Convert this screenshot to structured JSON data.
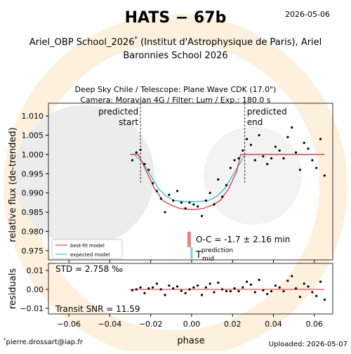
{
  "chart_data": {
    "type": "scatter",
    "title": "HATS − 67b",
    "date": "2026-05-06",
    "subtitle": {
      "line1_a": "Ariel_OBP School_2026",
      "mark": "*",
      "line1_b": " (Institut d'Astrophysique de Paris), Ariel",
      "line2": "Baronnies School 2026"
    },
    "plot_title": [
      "Deep Sky Chile / Telescope: Plane Wave CDK (17.0\")",
      "Camera: Moravian 4G / Filter: Lum / Exp.: 180.0 s"
    ],
    "y_label": "relative flux (de-trended)",
    "residuals_label": "residuals",
    "x_label": "phase",
    "color": "#000000",
    "x": [
      -0.029,
      -0.027,
      -0.025,
      -0.023,
      -0.021,
      -0.019,
      -0.017,
      -0.015,
      -0.013,
      -0.011,
      -0.009,
      -0.007,
      -0.005,
      -0.003,
      -0.001,
      0.001,
      0.003,
      0.005,
      0.007,
      0.009,
      0.011,
      0.013,
      0.015,
      0.017,
      0.019,
      0.021,
      0.023,
      0.025,
      0.027,
      0.029,
      0.031,
      0.033,
      0.035,
      0.037,
      0.039,
      0.041,
      0.043,
      0.045,
      0.047,
      0.049,
      0.051,
      0.053,
      0.055,
      0.057,
      0.059,
      0.061,
      0.063,
      0.065
    ],
    "values": [
      0.9985,
      1.0005,
      1.0012,
      0.9975,
      0.996,
      0.9925,
      0.9905,
      0.9885,
      0.985,
      0.9895,
      0.988,
      0.9905,
      0.9875,
      0.986,
      0.9875,
      0.987,
      0.9865,
      0.984,
      0.988,
      0.99,
      0.987,
      0.9935,
      0.989,
      0.992,
      0.9965,
      0.9985,
      0.999,
      1.001,
      1.004,
      1.0025,
      0.9985,
      1.005,
      0.9995,
      0.9975,
      0.999,
      1.002,
      1.001,
      0.999,
      1.0045,
      1.007,
      1.0005,
      0.996,
      1.003,
      1.0015,
      0.9985,
      0.9965,
      1.004,
      0.9945
    ],
    "residuals": [
      -0.0005,
      0.0,
      0.001,
      -0.002,
      0.0005,
      0.001,
      0.003,
      0.0,
      -0.003,
      0.002,
      0.0005,
      0.0015,
      -0.0008,
      -0.002,
      0.0,
      0.001,
      0.002,
      -0.003,
      0.001,
      0.003,
      -0.0015,
      0.0035,
      0.0,
      -0.001,
      -0.001,
      0.0005,
      -0.001,
      0.001,
      0.004,
      0.0025,
      -0.0015,
      0.005,
      -0.0005,
      -0.0025,
      -0.001,
      0.002,
      0.001,
      -0.001,
      0.0045,
      0.007,
      0.0005,
      -0.004,
      0.003,
      0.0015,
      -0.0015,
      -0.0035,
      0.004,
      -0.0055
    ],
    "models": [
      {
        "name": "best-fit model",
        "color": "#e8262a",
        "x": [
          -0.03,
          -0.026,
          -0.022,
          -0.018,
          -0.014,
          -0.01,
          -0.006,
          -0.002,
          0.002,
          0.006,
          0.01,
          0.014,
          0.018,
          0.022,
          0.024,
          0.065
        ],
        "values": [
          1.0,
          1.0,
          0.9955,
          0.991,
          0.988,
          0.9868,
          0.986,
          0.9857,
          0.9857,
          0.986,
          0.9868,
          0.988,
          0.991,
          0.9955,
          1.0,
          1.0
        ]
      },
      {
        "name": "expected model",
        "color": "#17becf",
        "x": [
          -0.03,
          -0.028,
          -0.024,
          -0.02,
          -0.016,
          -0.012,
          -0.008,
          -0.004,
          0.0,
          0.004,
          0.008,
          0.012,
          0.016,
          0.02,
          0.024,
          0.026,
          0.065
        ],
        "values": [
          1.0,
          1.0,
          0.998,
          0.9945,
          0.991,
          0.989,
          0.988,
          0.9878,
          0.9877,
          0.9878,
          0.988,
          0.989,
          0.991,
          0.9945,
          0.998,
          1.0,
          1.0
        ]
      }
    ],
    "transit_markers": [
      {
        "x": -0.025,
        "lines": [
          "predicted",
          "start"
        ]
      },
      {
        "x": 0.026,
        "lines": [
          "predicted",
          "end"
        ]
      }
    ],
    "tmid_prediction": 0,
    "tmid_observed": -0.0012,
    "oc_text": "O-C = -1.7 ± 2.16 min",
    "tmid_label": {
      "main": "T",
      "sup": "prediction",
      "sub": "mid"
    },
    "std_text": "STD = 2.758 ‰",
    "snr_text": "Transit SNR = 11.59",
    "footnote_mark": "*",
    "footnote": "pierre.drossart@iap.fr",
    "uploaded": "Uploaded: 2026-05-07",
    "xlim": [
      -0.07,
      0.069
    ],
    "xticks": [
      {
        "value": -0.06,
        "label": "−0.06"
      },
      {
        "value": -0.04,
        "label": "−0.04"
      },
      {
        "value": -0.02,
        "label": "−0.02"
      },
      {
        "value": 0,
        "label": "0.00"
      },
      {
        "value": 0.02,
        "label": "0.02"
      },
      {
        "value": 0.04,
        "label": "0.04"
      },
      {
        "value": 0.06,
        "label": "0.06"
      }
    ],
    "ylim": [
      0.9726,
      1.0133
    ],
    "yticks": [
      0.975,
      {
        "value": 0.98,
        "label": "0.980"
      },
      0.985,
      {
        "value": 0.99,
        "label": "0.990"
      },
      0.995,
      {
        "value": 1.0,
        "label": "1.000"
      },
      1.005,
      {
        "value": 1.01,
        "label": "1.010"
      }
    ],
    "residuals_ylim": [
      -0.013,
      0.0137
    ],
    "residuals_yticks": [
      {
        "value": -0.01,
        "label": "−0.01"
      },
      {
        "value": 0,
        "label": "0.00"
      },
      {
        "value": 0.01,
        "label": "0.01"
      }
    ]
  }
}
